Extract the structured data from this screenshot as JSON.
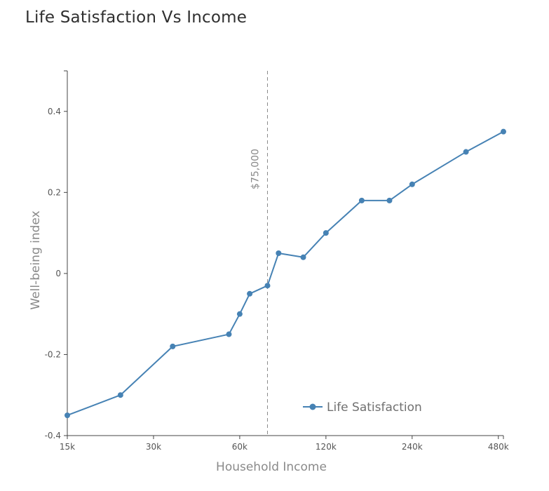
{
  "chart_data": {
    "type": "line",
    "title": "Life Satisfaction Vs Income",
    "xlabel": "Household Income",
    "ylabel": "Well-being index",
    "x_scale": "log",
    "xlim": [
      15000,
      500000
    ],
    "ylim": [
      -0.4,
      0.5
    ],
    "x_ticks": [
      {
        "value": 15000,
        "label": "15k"
      },
      {
        "value": 30000,
        "label": "30k"
      },
      {
        "value": 60000,
        "label": "60k"
      },
      {
        "value": 120000,
        "label": "120k"
      },
      {
        "value": 240000,
        "label": "240k"
      },
      {
        "value": 480000,
        "label": "480k"
      }
    ],
    "y_ticks": [
      {
        "value": -0.4,
        "label": "-0.4"
      },
      {
        "value": -0.2,
        "label": "-0.2"
      },
      {
        "value": 0,
        "label": "0"
      },
      {
        "value": 0.2,
        "label": "0.2"
      },
      {
        "value": 0.4,
        "label": "0.4"
      }
    ],
    "grid": false,
    "legend": {
      "position": "bottom-right"
    },
    "series": [
      {
        "name": "Life Satisfaction",
        "color": "#4682b4",
        "points": [
          {
            "x": 13000,
            "y": -0.35
          },
          {
            "x": 23000,
            "y": -0.3
          },
          {
            "x": 35000,
            "y": -0.18
          },
          {
            "x": 55000,
            "y": -0.15
          },
          {
            "x": 60000,
            "y": -0.1
          },
          {
            "x": 65000,
            "y": -0.05
          },
          {
            "x": 75000,
            "y": -0.03
          },
          {
            "x": 82000,
            "y": 0.05
          },
          {
            "x": 100000,
            "y": 0.04
          },
          {
            "x": 120000,
            "y": 0.1
          },
          {
            "x": 160000,
            "y": 0.18
          },
          {
            "x": 200000,
            "y": 0.18
          },
          {
            "x": 240000,
            "y": 0.22
          },
          {
            "x": 370000,
            "y": 0.3
          },
          {
            "x": 500000,
            "y": 0.35
          }
        ]
      }
    ],
    "annotations": [
      {
        "type": "vertical-line",
        "x": 75000,
        "label": "$75,000",
        "color": "#8a8a8a"
      }
    ]
  }
}
